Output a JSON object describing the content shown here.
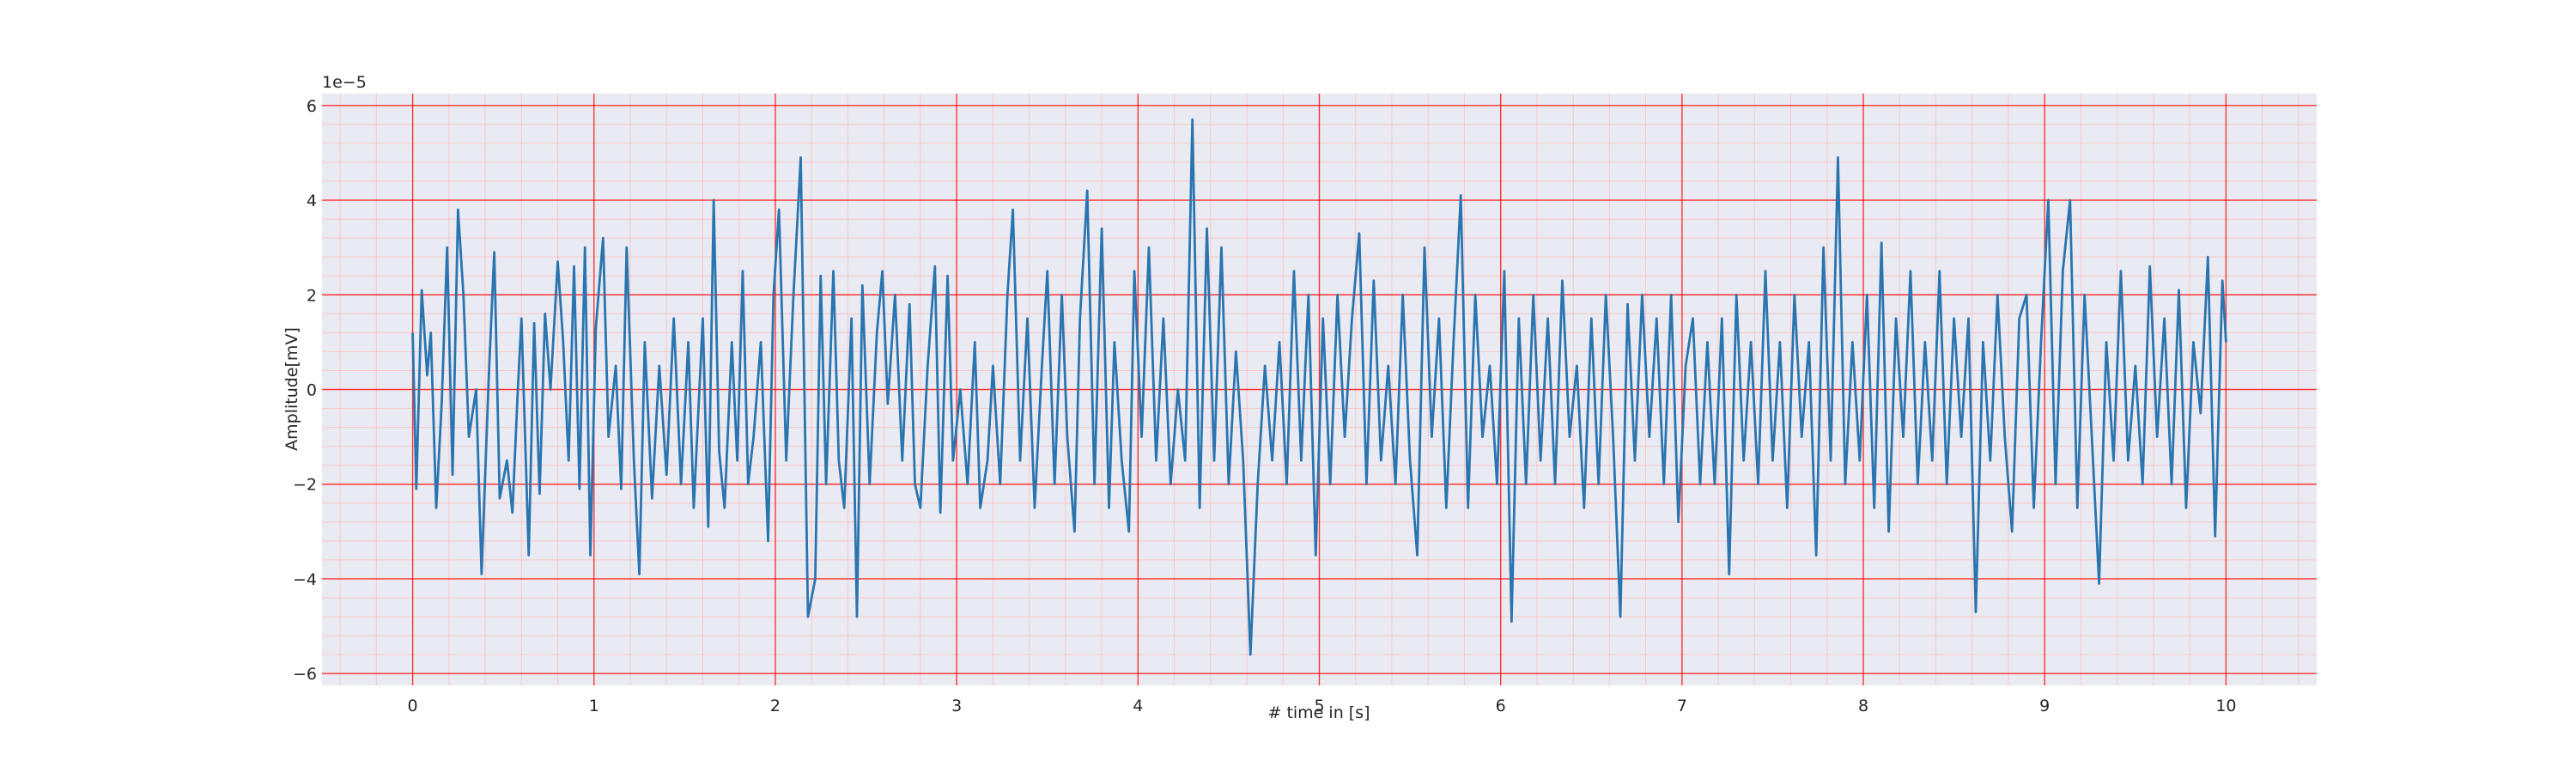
{
  "chart_data": {
    "type": "line",
    "xlabel": "# time in [s]",
    "ylabel": "Amplitude[mV]",
    "y_offset_label": "1e−5",
    "background": "#eaeaf2",
    "grid": true,
    "grid_color": "#ff0000",
    "minor_grid": true,
    "minor_grid_color": "#ffb0b0",
    "xlim": [
      -0.5,
      10.5
    ],
    "ylim": [
      -6.25,
      6.25
    ],
    "xticks": [
      0,
      1,
      2,
      3,
      4,
      5,
      6,
      7,
      8,
      9,
      10
    ],
    "yticks": [
      {
        "value": -6,
        "label": "−6"
      },
      {
        "value": -4,
        "label": "−4"
      },
      {
        "value": -2,
        "label": "−2"
      },
      0,
      2,
      4,
      6
    ],
    "x": [
      0,
      0.02,
      0.05,
      0.08,
      0.1,
      0.13,
      0.16,
      0.19,
      0.22,
      0.25,
      0.28,
      0.31,
      0.35,
      0.38,
      0.42,
      0.45,
      0.48,
      0.52,
      0.55,
      0.58,
      0.6,
      0.64,
      0.67,
      0.7,
      0.73,
      0.76,
      0.8,
      0.83,
      0.86,
      0.89,
      0.92,
      0.95,
      0.98,
      1.01,
      1.05,
      1.08,
      1.12,
      1.15,
      1.18,
      1.22,
      1.25,
      1.28,
      1.32,
      1.36,
      1.4,
      1.44,
      1.48,
      1.52,
      1.55,
      1.6,
      1.63,
      1.66,
      1.69,
      1.72,
      1.76,
      1.79,
      1.82,
      1.85,
      1.88,
      1.92,
      1.96,
      1.99,
      2.02,
      2.06,
      2.1,
      2.14,
      2.18,
      2.22,
      2.25,
      2.28,
      2.32,
      2.35,
      2.38,
      2.42,
      2.45,
      2.48,
      2.52,
      2.56,
      2.59,
      2.62,
      2.66,
      2.7,
      2.74,
      2.77,
      2.8,
      2.84,
      2.88,
      2.91,
      2.95,
      2.98,
      3.02,
      3.06,
      3.1,
      3.13,
      3.17,
      3.2,
      3.24,
      3.28,
      3.31,
      3.35,
      3.39,
      3.43,
      3.47,
      3.5,
      3.54,
      3.58,
      3.61,
      3.65,
      3.68,
      3.72,
      3.76,
      3.8,
      3.84,
      3.87,
      3.91,
      3.95,
      3.98,
      4.02,
      4.06,
      4.1,
      4.14,
      4.18,
      4.22,
      4.26,
      4.3,
      4.34,
      4.38,
      4.42,
      4.46,
      4.5,
      4.54,
      4.58,
      4.62,
      4.66,
      4.7,
      4.74,
      4.78,
      4.82,
      4.86,
      4.9,
      4.94,
      4.98,
      5.02,
      5.06,
      5.1,
      5.14,
      5.18,
      5.22,
      5.26,
      5.3,
      5.34,
      5.38,
      5.42,
      5.46,
      5.5,
      5.54,
      5.58,
      5.62,
      5.66,
      5.7,
      5.74,
      5.78,
      5.82,
      5.86,
      5.9,
      5.94,
      5.98,
      6.02,
      6.06,
      6.1,
      6.14,
      6.18,
      6.22,
      6.26,
      6.3,
      6.34,
      6.38,
      6.42,
      6.46,
      6.5,
      6.54,
      6.58,
      6.62,
      6.66,
      6.7,
      6.74,
      6.78,
      6.82,
      6.86,
      6.9,
      6.94,
      6.98,
      7.02,
      7.06,
      7.1,
      7.14,
      7.18,
      7.22,
      7.26,
      7.3,
      7.34,
      7.38,
      7.42,
      7.46,
      7.5,
      7.54,
      7.58,
      7.62,
      7.66,
      7.7,
      7.74,
      7.78,
      7.82,
      7.86,
      7.9,
      7.94,
      7.98,
      8.02,
      8.06,
      8.1,
      8.14,
      8.18,
      8.22,
      8.26,
      8.3,
      8.34,
      8.38,
      8.42,
      8.46,
      8.5,
      8.54,
      8.58,
      8.62,
      8.66,
      8.7,
      8.74,
      8.78,
      8.82,
      8.86,
      8.9,
      8.94,
      8.98,
      9.02,
      9.06,
      9.1,
      9.14,
      9.18,
      9.22,
      9.26,
      9.3,
      9.34,
      9.38,
      9.42,
      9.46,
      9.5,
      9.54,
      9.58,
      9.62,
      9.66,
      9.7,
      9.74,
      9.78,
      9.82,
      9.86,
      9.9,
      9.94,
      9.98,
      10
    ],
    "series": [
      {
        "color": "#2a75b0",
        "values": [
          1.2,
          -2.1,
          2.1,
          0.3,
          1.2,
          -2.5,
          -0.3,
          3.0,
          -1.8,
          3.8,
          2.0,
          -1,
          0,
          -3.9,
          0.3,
          2.9,
          -2.3,
          -1.5,
          -2.6,
          0,
          1.5,
          -3.5,
          1.4,
          -2.2,
          1.6,
          0,
          2.7,
          1.0,
          -1.5,
          2.6,
          -2.1,
          3.0,
          -3.5,
          1.3,
          3.2,
          -1.0,
          0.5,
          -2.1,
          3.0,
          -1.5,
          -3.9,
          1.0,
          -2.3,
          0.5,
          -1.8,
          1.5,
          -2,
          1.0,
          -2.5,
          1.5,
          -2.9,
          4.0,
          -1.3,
          -2.5,
          1.0,
          -1.5,
          2.5,
          -2,
          -1,
          1,
          -3.2,
          2.0,
          3.8,
          -1.5,
          2.0,
          4.9,
          -4.8,
          -4.0,
          2.4,
          -2.0,
          2.5,
          -1.5,
          -2.5,
          1.5,
          -4.8,
          2.2,
          -2.0,
          1.2,
          2.5,
          -0.3,
          2.0,
          -1.5,
          1.8,
          -2.0,
          -2.5,
          0.5,
          2.6,
          -2.6,
          2.4,
          -1.5,
          0,
          -2,
          1.0,
          -2.5,
          -1.5,
          0.5,
          -2,
          2.0,
          3.8,
          -1.5,
          1.5,
          -2.5,
          0.5,
          2.5,
          -2,
          2.0,
          -1,
          -3.0,
          1.5,
          4.2,
          -2.0,
          3.4,
          -2.5,
          1.0,
          -1.5,
          -3.0,
          2.5,
          -1,
          3.0,
          -1.5,
          1.5,
          -2.0,
          0,
          -1.5,
          5.7,
          -2.5,
          3.4,
          -1.5,
          3.0,
          -2.0,
          0.8,
          -1.5,
          -5.6,
          -2.0,
          0.5,
          -1.5,
          1.0,
          -2.0,
          2.5,
          -1.5,
          2.0,
          -3.5,
          1.5,
          -2,
          2.0,
          -1.0,
          1.5,
          3.3,
          -2.0,
          2.3,
          -1.5,
          0.5,
          -2.0,
          2.0,
          -1.5,
          -3.5,
          3.0,
          -1.0,
          1.5,
          -2.5,
          1.0,
          4.1,
          -2.5,
          2.0,
          -1.0,
          0.5,
          -2.0,
          2.5,
          -4.9,
          1.5,
          -2.0,
          2.0,
          -1.5,
          1.5,
          -2,
          2.3,
          -1,
          0.5,
          -2.5,
          1.5,
          -2,
          2.0,
          -1,
          -4.8,
          1.8,
          -1.5,
          2.0,
          -1.0,
          1.5,
          -2.0,
          2.0,
          -2.8,
          0.5,
          1.5,
          -2,
          1.0,
          -2.0,
          1.5,
          -3.9,
          2.0,
          -1.5,
          1.0,
          -2.0,
          2.5,
          -1.5,
          1.0,
          -2.5,
          2.0,
          -1.0,
          1.0,
          -3.5,
          3.0,
          -1.5,
          4.9,
          -2.0,
          1.0,
          -1.5,
          2.0,
          -2.5,
          3.1,
          -3.0,
          1.5,
          -1.0,
          2.5,
          -2.0,
          1.0,
          -1.5,
          2.5,
          -2.0,
          1.5,
          -1.0,
          1.5,
          -4.7,
          1.0,
          -1.5,
          2.0,
          -1.0,
          -3.0,
          1.5,
          2.0,
          -2.5,
          1.0,
          4.0,
          -2.0,
          2.5,
          4.0,
          -2.5,
          2.0,
          -1.0,
          -4.1,
          1.0,
          -1.5,
          2.5,
          -1.5,
          0.5,
          -2.0,
          2.6,
          -1.0,
          1.5,
          -2.0,
          2.1,
          -2.5,
          1.0,
          -0.5,
          2.8,
          -3.1,
          2.3,
          1.0
        ]
      }
    ]
  }
}
